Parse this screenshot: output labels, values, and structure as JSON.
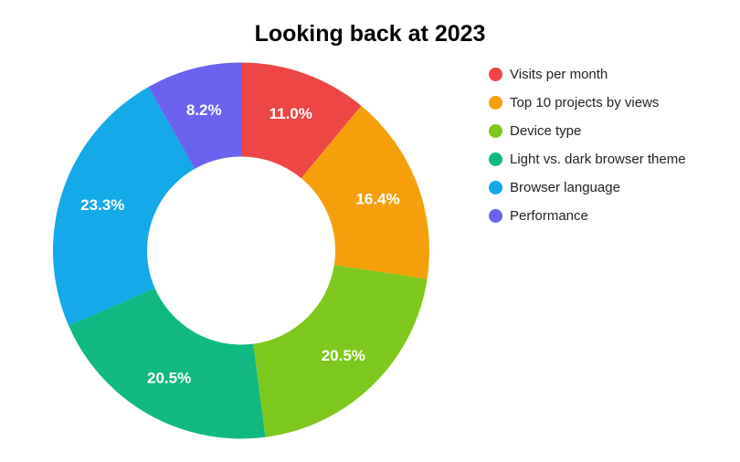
{
  "chart_data": {
    "type": "pie",
    "subtype": "donut",
    "title": "Looking back at 2023",
    "legend_position": "right",
    "background_color": "#FFFFFF",
    "slice_label_color": "#FFFFFF",
    "hole_ratio": 0.5,
    "slices": [
      {
        "label": "Visits per month",
        "value": 11.0,
        "pct_label": "11.0%",
        "color": "#EE4545"
      },
      {
        "label": "Top 10 projects by views",
        "value": 16.4,
        "pct_label": "16.4%",
        "color": "#F5A00B"
      },
      {
        "label": "Device type",
        "value": 20.5,
        "pct_label": "20.5%",
        "color": "#7EC81D"
      },
      {
        "label": "Light vs. dark browser theme",
        "value": 20.5,
        "pct_label": "20.5%",
        "color": "#10B981"
      },
      {
        "label": "Browser language",
        "value": 23.3,
        "pct_label": "23.3%",
        "color": "#14A9E9"
      },
      {
        "label": "Performance",
        "value": 8.2,
        "pct_label": "8.2%",
        "color": "#6A62EF"
      }
    ]
  }
}
